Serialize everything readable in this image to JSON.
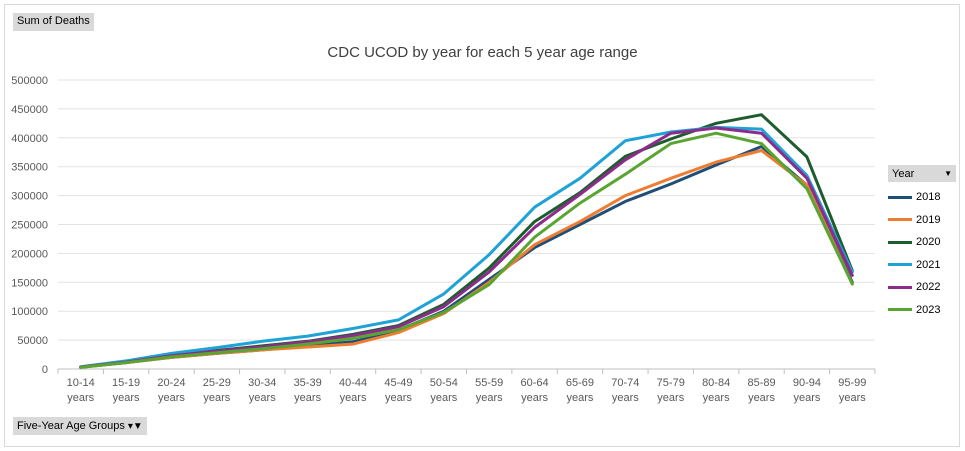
{
  "pivot": {
    "value_field": "Sum of Deaths",
    "axis_field": "Five-Year Age Groups",
    "legend_field": "Year"
  },
  "chart_data": {
    "type": "line",
    "title": "CDC UCOD by year for each 5 year age range",
    "xlabel": "",
    "ylabel": "",
    "ylim": [
      0,
      500000
    ],
    "yticks": [
      "0",
      "50000",
      "100000",
      "150000",
      "200000",
      "250000",
      "300000",
      "350000",
      "400000",
      "450000",
      "500000"
    ],
    "grid": true,
    "legend_position": "right",
    "categories": [
      {
        "top": "10-14",
        "bottom": "years"
      },
      {
        "top": "15-19",
        "bottom": "years"
      },
      {
        "top": "20-24",
        "bottom": "years"
      },
      {
        "top": "25-29",
        "bottom": "years"
      },
      {
        "top": "30-34",
        "bottom": "years"
      },
      {
        "top": "35-39",
        "bottom": "years"
      },
      {
        "top": "40-44",
        "bottom": "years"
      },
      {
        "top": "45-49",
        "bottom": "years"
      },
      {
        "top": "50-54",
        "bottom": "years"
      },
      {
        "top": "55-59",
        "bottom": "years"
      },
      {
        "top": "60-64",
        "bottom": "years"
      },
      {
        "top": "65-69",
        "bottom": "years"
      },
      {
        "top": "70-74",
        "bottom": "years"
      },
      {
        "top": "75-79",
        "bottom": "years"
      },
      {
        "top": "80-84",
        "bottom": "years"
      },
      {
        "top": "85-89",
        "bottom": "years"
      },
      {
        "top": "90-94",
        "bottom": "years"
      },
      {
        "top": "95-99",
        "bottom": "years"
      }
    ],
    "series": [
      {
        "name": "2018",
        "color": "#1f4e79",
        "values": [
          3000,
          11000,
          20000,
          27000,
          33000,
          40000,
          47000,
          67000,
          100000,
          155000,
          210000,
          250000,
          290000,
          320000,
          353000,
          385000,
          318000,
          150000
        ]
      },
      {
        "name": "2019",
        "color": "#ed7d31",
        "values": [
          3000,
          11000,
          20000,
          27000,
          33000,
          38000,
          43000,
          63000,
          96000,
          150000,
          215000,
          255000,
          300000,
          330000,
          358000,
          378000,
          318000,
          147000
        ]
      },
      {
        "name": "2020",
        "color": "#1e5c2e",
        "values": [
          3500,
          12000,
          23000,
          32000,
          40000,
          48000,
          60000,
          75000,
          112000,
          175000,
          255000,
          305000,
          368000,
          398000,
          425000,
          440000,
          367000,
          170000
        ]
      },
      {
        "name": "2021",
        "color": "#1fa2d6",
        "values": [
          4000,
          14000,
          27000,
          37000,
          48000,
          57000,
          70000,
          85000,
          130000,
          198000,
          280000,
          330000,
          395000,
          410000,
          418000,
          415000,
          335000,
          168000
        ]
      },
      {
        "name": "2022",
        "color": "#8b2c8c",
        "values": [
          3500,
          12000,
          23000,
          31000,
          38000,
          47000,
          58000,
          73000,
          108000,
          168000,
          245000,
          302000,
          362000,
          408000,
          417000,
          408000,
          330000,
          162000
        ]
      },
      {
        "name": "2023",
        "color": "#5aa532",
        "values": [
          3000,
          11000,
          21000,
          28000,
          35000,
          43000,
          53000,
          68000,
          98000,
          146000,
          228000,
          287000,
          337000,
          390000,
          408000,
          390000,
          312000,
          147000
        ]
      }
    ]
  }
}
